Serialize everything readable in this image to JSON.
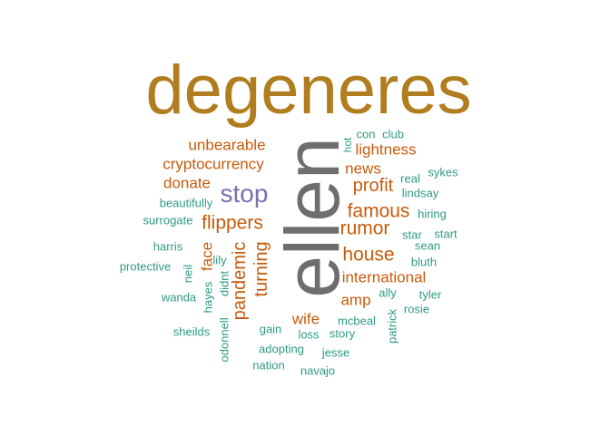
{
  "colors": {
    "gold": "#b07d1f",
    "gray": "#6e6e6e",
    "orange": "#c85a0a",
    "purple": "#7b6fb0",
    "teal": "#2f9a86"
  },
  "words": [
    {
      "text": "degeneres",
      "color": "gold"
    },
    {
      "text": "ellen",
      "color": "gray"
    },
    {
      "text": "stop",
      "color": "purple"
    },
    {
      "text": "unbearable",
      "color": "orange"
    },
    {
      "text": "cryptocurrency",
      "color": "orange"
    },
    {
      "text": "donate",
      "color": "orange"
    },
    {
      "text": "flippers",
      "color": "orange"
    },
    {
      "text": "face",
      "color": "orange"
    },
    {
      "text": "pandemic",
      "color": "orange"
    },
    {
      "text": "turning",
      "color": "orange"
    },
    {
      "text": "lightness",
      "color": "orange"
    },
    {
      "text": "news",
      "color": "orange"
    },
    {
      "text": "profit",
      "color": "orange"
    },
    {
      "text": "famous",
      "color": "orange"
    },
    {
      "text": "rumor",
      "color": "orange"
    },
    {
      "text": "house",
      "color": "orange"
    },
    {
      "text": "international",
      "color": "orange"
    },
    {
      "text": "amp",
      "color": "orange"
    },
    {
      "text": "wife",
      "color": "orange"
    },
    {
      "text": "hot",
      "color": "teal"
    },
    {
      "text": "con",
      "color": "teal"
    },
    {
      "text": "club",
      "color": "teal"
    },
    {
      "text": "sykes",
      "color": "teal"
    },
    {
      "text": "real",
      "color": "teal"
    },
    {
      "text": "lindsay",
      "color": "teal"
    },
    {
      "text": "beautifully",
      "color": "teal"
    },
    {
      "text": "hiring",
      "color": "teal"
    },
    {
      "text": "surrogate",
      "color": "teal"
    },
    {
      "text": "star",
      "color": "teal"
    },
    {
      "text": "start",
      "color": "teal"
    },
    {
      "text": "sean",
      "color": "teal"
    },
    {
      "text": "harris",
      "color": "teal"
    },
    {
      "text": "lily",
      "color": "teal"
    },
    {
      "text": "bluth",
      "color": "teal"
    },
    {
      "text": "protective",
      "color": "teal"
    },
    {
      "text": "neil",
      "color": "teal"
    },
    {
      "text": "tyler",
      "color": "teal"
    },
    {
      "text": "ally",
      "color": "teal"
    },
    {
      "text": "wanda",
      "color": "teal"
    },
    {
      "text": "hayes",
      "color": "teal"
    },
    {
      "text": "didnt",
      "color": "teal"
    },
    {
      "text": "rosie",
      "color": "teal"
    },
    {
      "text": "patrick",
      "color": "teal"
    },
    {
      "text": "mcbeal",
      "color": "teal"
    },
    {
      "text": "sheilds",
      "color": "teal"
    },
    {
      "text": "gain",
      "color": "teal"
    },
    {
      "text": "loss",
      "color": "teal"
    },
    {
      "text": "story",
      "color": "teal"
    },
    {
      "text": "odonnell",
      "color": "teal"
    },
    {
      "text": "adopting",
      "color": "teal"
    },
    {
      "text": "jesse",
      "color": "teal"
    },
    {
      "text": "nation",
      "color": "teal"
    },
    {
      "text": "navajo",
      "color": "teal"
    }
  ]
}
